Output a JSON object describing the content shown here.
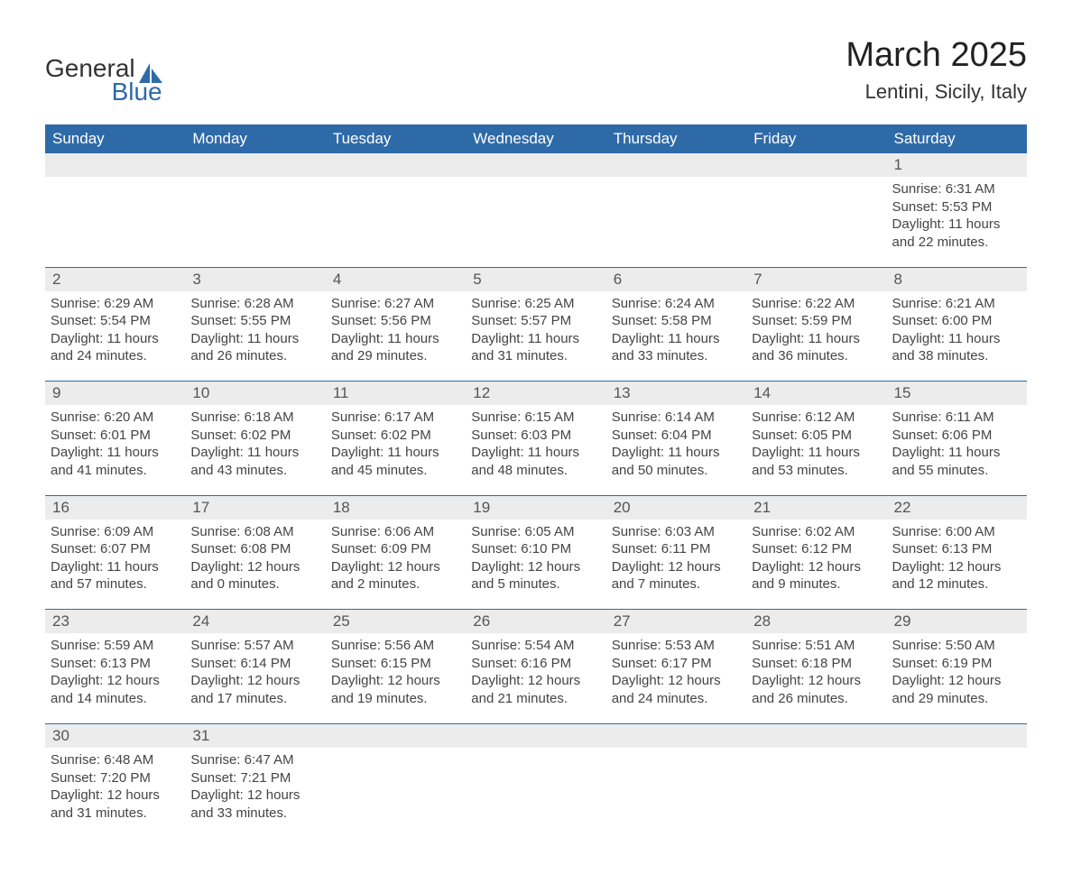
{
  "logo": {
    "text1": "General",
    "text2": "Blue",
    "color1": "#333333",
    "color2": "#2f6aa8"
  },
  "title": "March 2025",
  "location": "Lentini, Sicily, Italy",
  "colors": {
    "header_bg": "#2f6aa8",
    "header_text": "#ffffff",
    "day_strip_bg": "#ececec",
    "divider": "#2f6aa8",
    "body_text": "#444444"
  },
  "fonts": {
    "title_size": 38,
    "location_size": 22,
    "header_size": 17,
    "cell_size": 15
  },
  "weekdays": [
    "Sunday",
    "Monday",
    "Tuesday",
    "Wednesday",
    "Thursday",
    "Friday",
    "Saturday"
  ],
  "weeks": [
    {
      "nums": [
        "",
        "",
        "",
        "",
        "",
        "",
        "1"
      ],
      "cells": [
        null,
        null,
        null,
        null,
        null,
        null,
        {
          "sunrise": "Sunrise: 6:31 AM",
          "sunset": "Sunset: 5:53 PM",
          "day1": "Daylight: 11 hours",
          "day2": "and 22 minutes."
        }
      ]
    },
    {
      "nums": [
        "2",
        "3",
        "4",
        "5",
        "6",
        "7",
        "8"
      ],
      "cells": [
        {
          "sunrise": "Sunrise: 6:29 AM",
          "sunset": "Sunset: 5:54 PM",
          "day1": "Daylight: 11 hours",
          "day2": "and 24 minutes."
        },
        {
          "sunrise": "Sunrise: 6:28 AM",
          "sunset": "Sunset: 5:55 PM",
          "day1": "Daylight: 11 hours",
          "day2": "and 26 minutes."
        },
        {
          "sunrise": "Sunrise: 6:27 AM",
          "sunset": "Sunset: 5:56 PM",
          "day1": "Daylight: 11 hours",
          "day2": "and 29 minutes."
        },
        {
          "sunrise": "Sunrise: 6:25 AM",
          "sunset": "Sunset: 5:57 PM",
          "day1": "Daylight: 11 hours",
          "day2": "and 31 minutes."
        },
        {
          "sunrise": "Sunrise: 6:24 AM",
          "sunset": "Sunset: 5:58 PM",
          "day1": "Daylight: 11 hours",
          "day2": "and 33 minutes."
        },
        {
          "sunrise": "Sunrise: 6:22 AM",
          "sunset": "Sunset: 5:59 PM",
          "day1": "Daylight: 11 hours",
          "day2": "and 36 minutes."
        },
        {
          "sunrise": "Sunrise: 6:21 AM",
          "sunset": "Sunset: 6:00 PM",
          "day1": "Daylight: 11 hours",
          "day2": "and 38 minutes."
        }
      ]
    },
    {
      "nums": [
        "9",
        "10",
        "11",
        "12",
        "13",
        "14",
        "15"
      ],
      "cells": [
        {
          "sunrise": "Sunrise: 6:20 AM",
          "sunset": "Sunset: 6:01 PM",
          "day1": "Daylight: 11 hours",
          "day2": "and 41 minutes."
        },
        {
          "sunrise": "Sunrise: 6:18 AM",
          "sunset": "Sunset: 6:02 PM",
          "day1": "Daylight: 11 hours",
          "day2": "and 43 minutes."
        },
        {
          "sunrise": "Sunrise: 6:17 AM",
          "sunset": "Sunset: 6:02 PM",
          "day1": "Daylight: 11 hours",
          "day2": "and 45 minutes."
        },
        {
          "sunrise": "Sunrise: 6:15 AM",
          "sunset": "Sunset: 6:03 PM",
          "day1": "Daylight: 11 hours",
          "day2": "and 48 minutes."
        },
        {
          "sunrise": "Sunrise: 6:14 AM",
          "sunset": "Sunset: 6:04 PM",
          "day1": "Daylight: 11 hours",
          "day2": "and 50 minutes."
        },
        {
          "sunrise": "Sunrise: 6:12 AM",
          "sunset": "Sunset: 6:05 PM",
          "day1": "Daylight: 11 hours",
          "day2": "and 53 minutes."
        },
        {
          "sunrise": "Sunrise: 6:11 AM",
          "sunset": "Sunset: 6:06 PM",
          "day1": "Daylight: 11 hours",
          "day2": "and 55 minutes."
        }
      ]
    },
    {
      "nums": [
        "16",
        "17",
        "18",
        "19",
        "20",
        "21",
        "22"
      ],
      "cells": [
        {
          "sunrise": "Sunrise: 6:09 AM",
          "sunset": "Sunset: 6:07 PM",
          "day1": "Daylight: 11 hours",
          "day2": "and 57 minutes."
        },
        {
          "sunrise": "Sunrise: 6:08 AM",
          "sunset": "Sunset: 6:08 PM",
          "day1": "Daylight: 12 hours",
          "day2": "and 0 minutes."
        },
        {
          "sunrise": "Sunrise: 6:06 AM",
          "sunset": "Sunset: 6:09 PM",
          "day1": "Daylight: 12 hours",
          "day2": "and 2 minutes."
        },
        {
          "sunrise": "Sunrise: 6:05 AM",
          "sunset": "Sunset: 6:10 PM",
          "day1": "Daylight: 12 hours",
          "day2": "and 5 minutes."
        },
        {
          "sunrise": "Sunrise: 6:03 AM",
          "sunset": "Sunset: 6:11 PM",
          "day1": "Daylight: 12 hours",
          "day2": "and 7 minutes."
        },
        {
          "sunrise": "Sunrise: 6:02 AM",
          "sunset": "Sunset: 6:12 PM",
          "day1": "Daylight: 12 hours",
          "day2": "and 9 minutes."
        },
        {
          "sunrise": "Sunrise: 6:00 AM",
          "sunset": "Sunset: 6:13 PM",
          "day1": "Daylight: 12 hours",
          "day2": "and 12 minutes."
        }
      ]
    },
    {
      "nums": [
        "23",
        "24",
        "25",
        "26",
        "27",
        "28",
        "29"
      ],
      "cells": [
        {
          "sunrise": "Sunrise: 5:59 AM",
          "sunset": "Sunset: 6:13 PM",
          "day1": "Daylight: 12 hours",
          "day2": "and 14 minutes."
        },
        {
          "sunrise": "Sunrise: 5:57 AM",
          "sunset": "Sunset: 6:14 PM",
          "day1": "Daylight: 12 hours",
          "day2": "and 17 minutes."
        },
        {
          "sunrise": "Sunrise: 5:56 AM",
          "sunset": "Sunset: 6:15 PM",
          "day1": "Daylight: 12 hours",
          "day2": "and 19 minutes."
        },
        {
          "sunrise": "Sunrise: 5:54 AM",
          "sunset": "Sunset: 6:16 PM",
          "day1": "Daylight: 12 hours",
          "day2": "and 21 minutes."
        },
        {
          "sunrise": "Sunrise: 5:53 AM",
          "sunset": "Sunset: 6:17 PM",
          "day1": "Daylight: 12 hours",
          "day2": "and 24 minutes."
        },
        {
          "sunrise": "Sunrise: 5:51 AM",
          "sunset": "Sunset: 6:18 PM",
          "day1": "Daylight: 12 hours",
          "day2": "and 26 minutes."
        },
        {
          "sunrise": "Sunrise: 5:50 AM",
          "sunset": "Sunset: 6:19 PM",
          "day1": "Daylight: 12 hours",
          "day2": "and 29 minutes."
        }
      ]
    },
    {
      "nums": [
        "30",
        "31",
        "",
        "",
        "",
        "",
        ""
      ],
      "cells": [
        {
          "sunrise": "Sunrise: 6:48 AM",
          "sunset": "Sunset: 7:20 PM",
          "day1": "Daylight: 12 hours",
          "day2": "and 31 minutes."
        },
        {
          "sunrise": "Sunrise: 6:47 AM",
          "sunset": "Sunset: 7:21 PM",
          "day1": "Daylight: 12 hours",
          "day2": "and 33 minutes."
        },
        null,
        null,
        null,
        null,
        null
      ]
    }
  ]
}
